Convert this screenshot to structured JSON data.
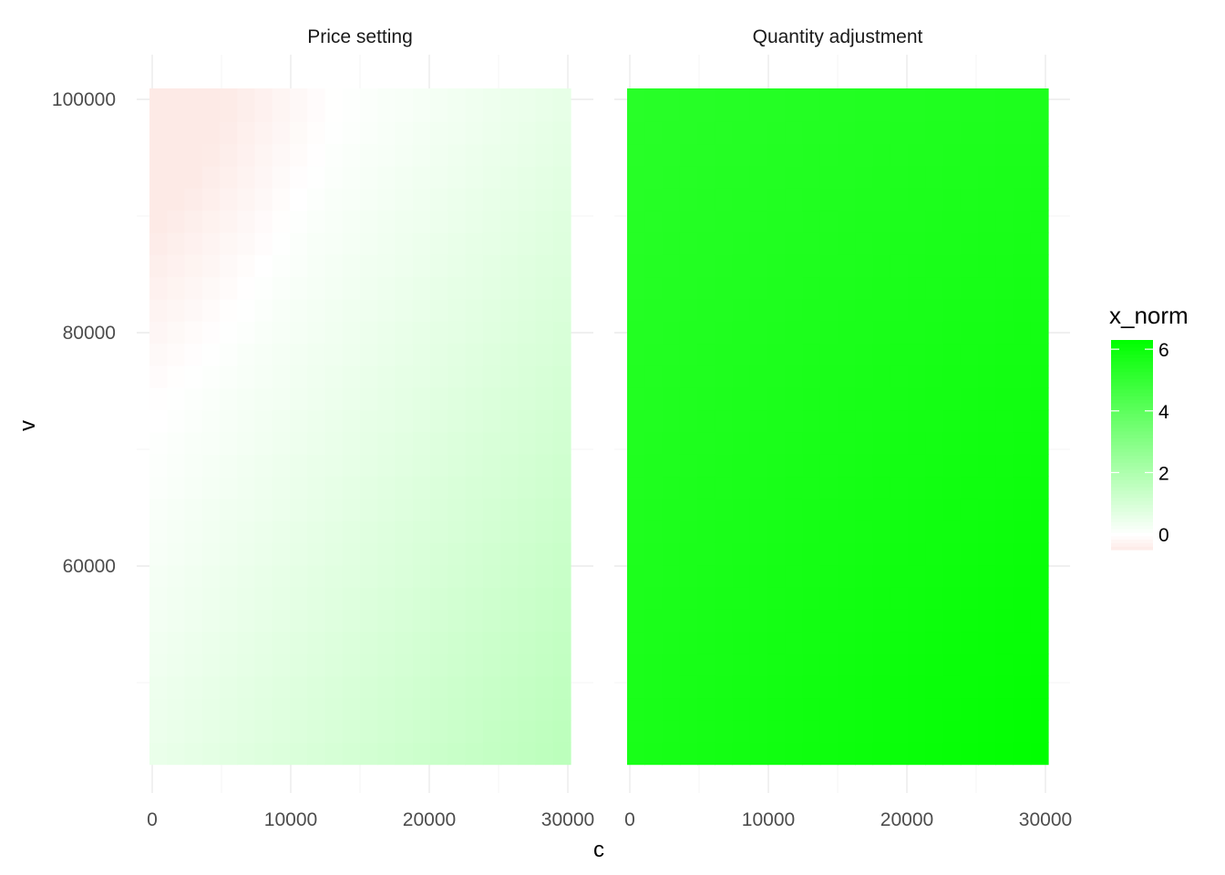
{
  "chart_data": {
    "type": "heatmap",
    "xlabel": "c",
    "ylabel": "v",
    "xlim": [
      0,
      30000
    ],
    "ylim": [
      43000,
      100000
    ],
    "x_ticks": [
      0,
      10000,
      20000,
      30000
    ],
    "y_ticks": [
      60000,
      80000,
      100000
    ],
    "grid": true,
    "panels": [
      {
        "name": "Price setting",
        "corner_values": {
          "c0_v100000": -0.5,
          "c30000_v100000": 0.6,
          "c0_v43000": 0.5,
          "c30000_v43000": 1.7
        }
      },
      {
        "name": "Quantity adjustment",
        "corner_values": {
          "c0_v100000": 5.3,
          "c30000_v100000": 5.6,
          "c0_v43000": 5.7,
          "c30000_v43000": 6.3
        }
      }
    ],
    "legend": {
      "title": "x_norm",
      "position": "right",
      "breaks": [
        0,
        2,
        4,
        6
      ],
      "range": [
        -0.5,
        6.3
      ],
      "low_color": "#fdeae6",
      "mid_color": "#ffffff",
      "high_color": "#00ff00"
    }
  }
}
